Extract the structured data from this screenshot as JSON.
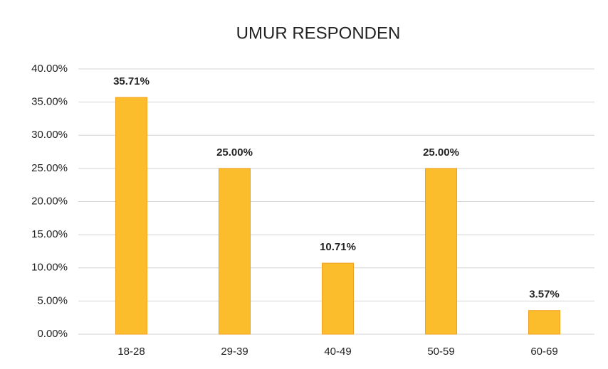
{
  "chart_data": {
    "type": "bar",
    "title": "UMUR RESPONDEN",
    "categories": [
      "18-28",
      "29-39",
      "40-49",
      "50-59",
      "60-69"
    ],
    "values": [
      35.71,
      25.0,
      10.71,
      25.0,
      3.57
    ],
    "value_labels": [
      "35.71%",
      "25.00%",
      "10.71%",
      "25.00%",
      "3.57%"
    ],
    "color": "#fbbd2c",
    "ylim": [
      0,
      40
    ],
    "yticks": [
      {
        "value": 0,
        "label": "0.00%"
      },
      {
        "value": 5,
        "label": "5.00%"
      },
      {
        "value": 10,
        "label": "10.00%"
      },
      {
        "value": 15,
        "label": "15.00%"
      },
      {
        "value": 20,
        "label": "20.00%"
      },
      {
        "value": 25,
        "label": "25.00%"
      },
      {
        "value": 30,
        "label": "30.00%"
      },
      {
        "value": 35,
        "label": "35.00%"
      },
      {
        "value": 40,
        "label": "40.00%"
      }
    ],
    "grid": true
  }
}
